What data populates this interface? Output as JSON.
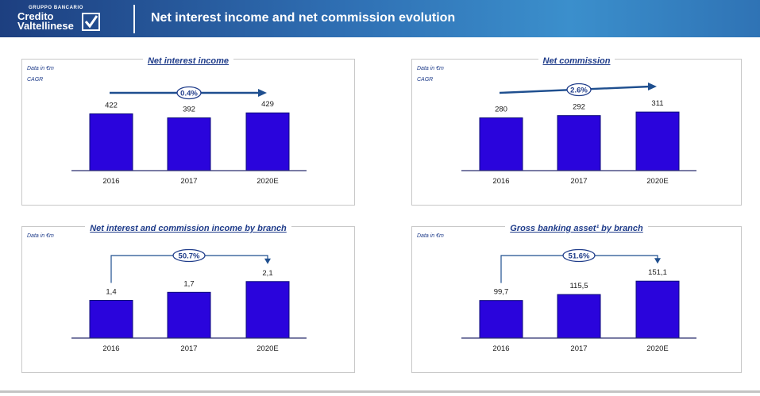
{
  "header": {
    "logo_top": "GRUPPO BANCARIO",
    "logo_line1": "Credito",
    "logo_line2": "Valtellinese",
    "title": "Net interest income and net commission evolution"
  },
  "colors": {
    "bar": "#2a04dc",
    "accent": "#1f3c8a",
    "header": "#2f6fb3"
  },
  "panels": [
    {
      "title": "Net interest income",
      "note1": "Data in €m",
      "note2": "CAGR",
      "cagr": "0.4%",
      "arrow_style": "straight"
    },
    {
      "title": "Net commission",
      "note1": "Data in €m",
      "note2": "CAGR",
      "cagr": "2.6%",
      "arrow_style": "straight"
    },
    {
      "title": "Net interest and commission income by branch",
      "note1": "Data in €m",
      "note2": "",
      "cagr": "50.7%",
      "arrow_style": "bracket"
    },
    {
      "title": "Gross banking asset¹ by branch",
      "note1": "Data in €m",
      "note2": "",
      "cagr": "51.6%",
      "arrow_style": "bracket"
    }
  ],
  "chart_data": [
    {
      "type": "bar",
      "title": "Net interest income",
      "categories": [
        "2016",
        "2017",
        "2020E"
      ],
      "values": [
        422,
        392,
        429
      ],
      "labels": [
        "422",
        "392",
        "429"
      ],
      "ylim": [
        0,
        560
      ]
    },
    {
      "type": "bar",
      "title": "Net commission",
      "categories": [
        "2016",
        "2017",
        "2020E"
      ],
      "values": [
        280,
        292,
        311
      ],
      "labels": [
        "280",
        "292",
        "311"
      ],
      "ylim": [
        0,
        400
      ]
    },
    {
      "type": "bar",
      "title": "Net interest and commission income by branch",
      "categories": [
        "2016",
        "2017",
        "2020E"
      ],
      "values": [
        1.4,
        1.7,
        2.1
      ],
      "labels": [
        "1,4",
        "1,7",
        "2,1"
      ],
      "ylim": [
        0,
        2.8
      ]
    },
    {
      "type": "bar",
      "title": "Gross banking asset¹ by branch",
      "categories": [
        "2016",
        "2017",
        "2020E"
      ],
      "values": [
        99.7,
        115.5,
        151.1
      ],
      "labels": [
        "99,7",
        "115,5",
        "151,1"
      ],
      "ylim": [
        0,
        200
      ]
    }
  ]
}
